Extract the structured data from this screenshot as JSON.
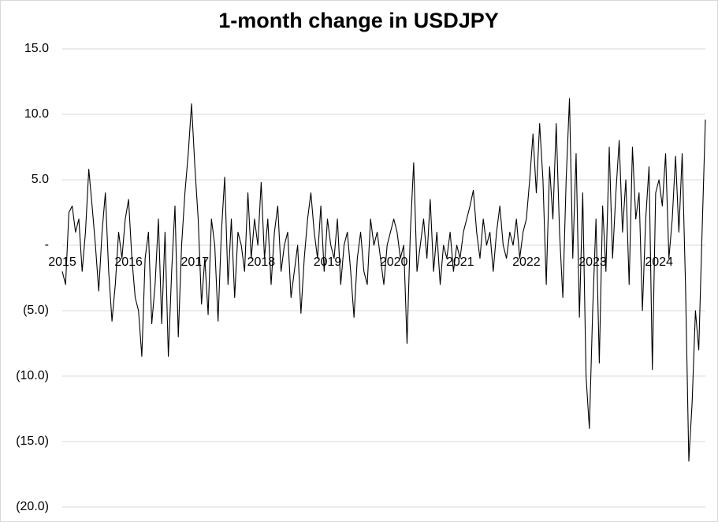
{
  "chart_data": {
    "type": "line",
    "title": "1-month change in USDJPY",
    "categories": [
      "2015",
      null,
      null,
      null,
      null,
      null,
      null,
      null,
      null,
      null,
      null,
      null,
      null,
      null,
      null,
      null,
      null,
      null,
      null,
      null,
      "2016",
      null,
      null,
      null,
      null,
      null,
      null,
      null,
      null,
      null,
      null,
      null,
      null,
      null,
      null,
      null,
      null,
      null,
      null,
      null,
      "2017",
      null,
      null,
      null,
      null,
      null,
      null,
      null,
      null,
      null,
      null,
      null,
      null,
      null,
      null,
      null,
      null,
      null,
      null,
      null,
      "2018",
      null,
      null,
      null,
      null,
      null,
      null,
      null,
      null,
      null,
      null,
      null,
      null,
      null,
      null,
      null,
      null,
      null,
      null,
      null,
      "2019",
      null,
      null,
      null,
      null,
      null,
      null,
      null,
      null,
      null,
      null,
      null,
      null,
      null,
      null,
      null,
      null,
      null,
      null,
      null,
      "2020",
      null,
      null,
      null,
      null,
      null,
      null,
      null,
      null,
      null,
      null,
      null,
      null,
      null,
      null,
      null,
      null,
      null,
      null,
      null,
      "2021",
      null,
      null,
      null,
      null,
      null,
      null,
      null,
      null,
      null,
      null,
      null,
      null,
      null,
      null,
      null,
      null,
      null,
      null,
      null,
      "2022",
      null,
      null,
      null,
      null,
      null,
      null,
      null,
      null,
      null,
      null,
      null,
      null,
      null,
      null,
      null,
      null,
      null,
      null,
      null,
      "2023",
      null,
      null,
      null,
      null,
      null,
      null,
      null,
      null,
      null,
      null,
      null,
      null,
      null,
      null,
      null,
      null,
      null,
      null,
      null,
      "2024",
      null,
      null,
      null,
      null,
      null,
      null,
      null,
      null,
      null,
      null,
      null,
      null,
      null,
      null
    ],
    "values": [
      -2,
      -3,
      2.5,
      3,
      1,
      2,
      -2,
      1,
      5.8,
      3,
      0,
      -3.5,
      1,
      4,
      -2,
      -5.8,
      -3,
      1,
      -1,
      2,
      3.5,
      -1,
      -4,
      -5,
      -8.5,
      -1,
      1,
      -6,
      -3,
      2,
      -6,
      1,
      -8.5,
      -2,
      3,
      -7,
      0,
      4,
      7,
      10.8,
      6,
      2,
      -4.5,
      -1,
      -5.3,
      2,
      0,
      -5.8,
      1,
      5.2,
      -3,
      2,
      -4,
      1,
      0,
      -2,
      4,
      -1,
      2,
      0,
      4.8,
      -1,
      2,
      -3,
      1,
      3,
      -2,
      0,
      1,
      -4,
      -2,
      0,
      -5.2,
      -1,
      2,
      4,
      1,
      -1,
      3,
      -2,
      2,
      0,
      -1,
      2,
      -3,
      0,
      1,
      -2,
      -5.5,
      -1,
      1,
      -2,
      -3,
      2,
      0,
      1,
      -1,
      -3,
      0,
      1,
      2,
      1,
      -1,
      0,
      -7.5,
      1,
      6.3,
      -2,
      0,
      2,
      -1,
      3.5,
      -2,
      1,
      -3,
      0,
      -1,
      1,
      -2,
      0,
      -1,
      1,
      2,
      3,
      4.2,
      1,
      -1,
      2,
      0,
      1,
      -2,
      1,
      3,
      0,
      -1,
      1,
      0,
      2,
      -1,
      1,
      2,
      5,
      8.5,
      4,
      9.3,
      5,
      -3,
      6,
      2,
      9.3,
      1,
      -4,
      5,
      11.2,
      -1,
      7,
      -5.5,
      4,
      -10,
      -14,
      -5,
      2,
      -9,
      3,
      -2,
      7.5,
      -1,
      4,
      8,
      1,
      5,
      -3,
      7.5,
      2,
      4,
      -5,
      2,
      6,
      -9.5,
      4,
      5,
      3,
      7,
      -1,
      2,
      6.8,
      1,
      7,
      -3,
      -16.5,
      -12,
      -5,
      -8,
      1,
      9.6
    ],
    "color": "#000000",
    "ylim": [
      -20,
      15
    ],
    "yticks": [
      {
        "value": -20,
        "label": "(20.0)"
      },
      {
        "value": -15,
        "label": "(15.0)"
      },
      {
        "value": -10,
        "label": "(10.0)"
      },
      {
        "value": -5,
        "label": "(5.0)"
      },
      {
        "value": 0,
        "label": "-"
      },
      {
        "value": 5,
        "label": "5.0"
      },
      {
        "value": 10,
        "label": "10.0"
      },
      {
        "value": 15,
        "label": "15.0"
      }
    ],
    "grid": true
  }
}
